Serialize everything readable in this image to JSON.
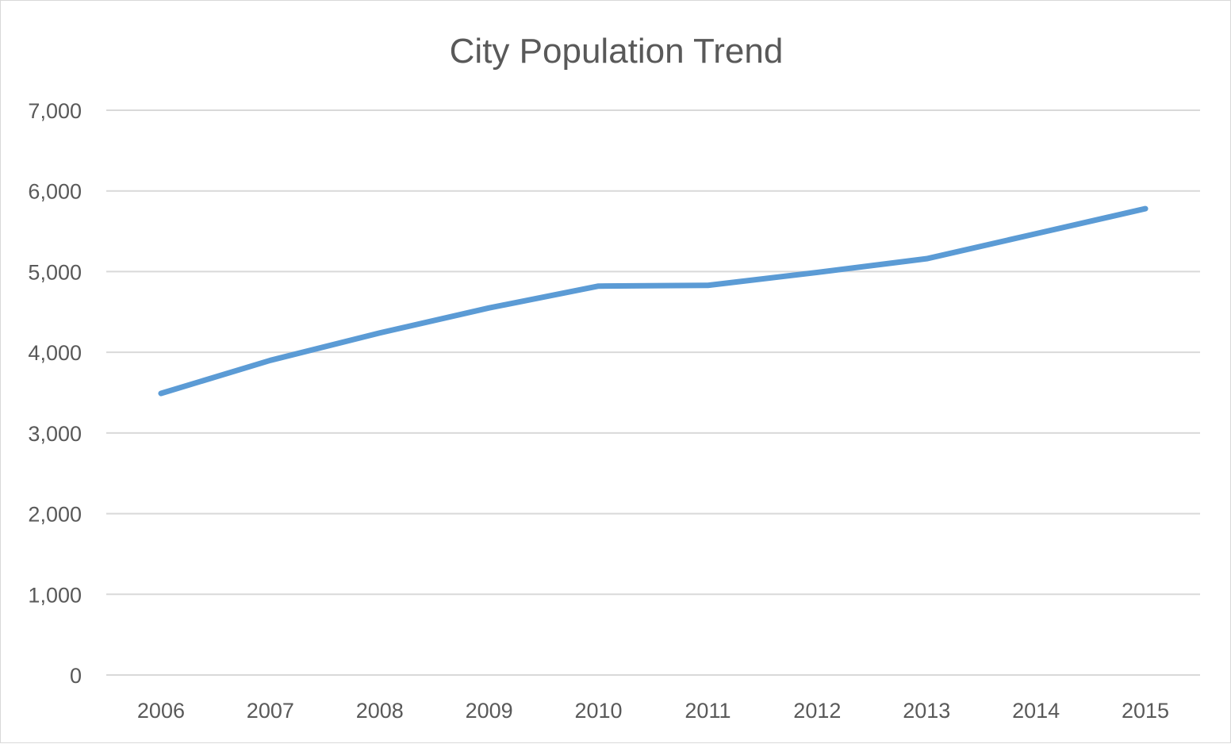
{
  "chart_data": {
    "type": "line",
    "title": "City Population Trend",
    "xlabel": "",
    "ylabel": "",
    "categories": [
      "2006",
      "2007",
      "2008",
      "2009",
      "2010",
      "2011",
      "2012",
      "2013",
      "2014",
      "2015"
    ],
    "values": [
      3490,
      3900,
      4240,
      4550,
      4820,
      4830,
      4990,
      5160,
      5470,
      5780
    ],
    "ylim": [
      0,
      7000
    ],
    "yticks": [
      0,
      1000,
      2000,
      3000,
      4000,
      5000,
      6000,
      7000
    ],
    "ytick_labels": [
      "0",
      "1,000",
      "2,000",
      "3,000",
      "4,000",
      "5,000",
      "6,000",
      "7,000"
    ],
    "grid": true,
    "legend": "none",
    "line_color": "#5b9bd5",
    "grid_color": "#d9d9d9"
  }
}
